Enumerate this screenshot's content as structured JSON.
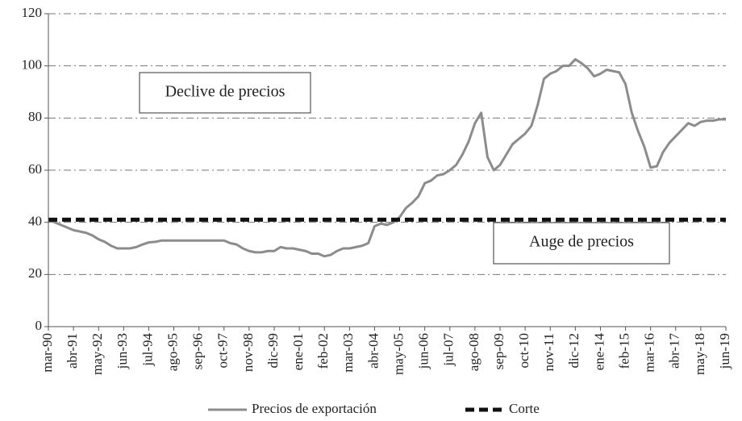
{
  "chart_data": {
    "type": "line",
    "categories": [
      "mar-90",
      null,
      null,
      null,
      "abr-91",
      null,
      null,
      null,
      "may-92",
      null,
      null,
      null,
      "jun-93",
      null,
      null,
      null,
      "jul-94",
      null,
      null,
      null,
      "ago-95",
      null,
      null,
      null,
      "sep-96",
      null,
      null,
      null,
      "oct-97",
      null,
      null,
      null,
      "nov-98",
      null,
      null,
      null,
      "dic-99",
      null,
      null,
      null,
      "ene-01",
      null,
      null,
      null,
      "feb-02",
      null,
      null,
      null,
      "mar-03",
      null,
      null,
      null,
      "abr-04",
      null,
      null,
      null,
      "may-05",
      null,
      null,
      null,
      "jun-06",
      null,
      null,
      null,
      "jul-07",
      null,
      null,
      null,
      "ago-08",
      null,
      null,
      null,
      "sep-09",
      null,
      null,
      null,
      "oct-10",
      null,
      null,
      null,
      "nov-11",
      null,
      null,
      null,
      "dic-12",
      null,
      null,
      null,
      "ene-14",
      null,
      null,
      null,
      "feb-15",
      null,
      null,
      null,
      "mar-16",
      null,
      null,
      null,
      "abr-17",
      null,
      null,
      null,
      "may-18",
      null,
      null,
      null,
      "jun-19"
    ],
    "series": [
      {
        "name": "Precios de exportación",
        "color": "#8c8c8c",
        "dashed": false,
        "values": [
          41,
          40,
          39,
          38,
          37,
          36.5,
          36,
          35,
          33.5,
          32.5,
          31,
          30,
          30,
          30,
          30.5,
          31.5,
          32.3,
          32.5,
          33,
          33,
          33,
          33,
          33,
          33,
          33,
          33,
          33,
          33,
          33,
          32,
          31.5,
          30,
          29,
          28.5,
          28.5,
          29,
          29,
          30.5,
          30,
          30,
          29.5,
          29,
          28,
          28,
          27,
          27.5,
          29,
          30,
          30,
          30.5,
          31,
          32,
          38.5,
          39.5,
          39,
          40,
          42,
          45.5,
          47.5,
          50,
          55,
          56,
          58,
          58.5,
          60,
          62,
          66,
          71,
          78,
          82,
          65,
          60,
          62,
          66,
          70,
          72,
          74,
          77,
          85,
          95,
          97,
          98,
          100,
          100,
          102.5,
          101,
          99,
          96,
          97,
          98.5,
          98,
          97.5,
          93,
          82,
          75,
          69,
          61,
          61.5,
          67,
          70.5,
          73,
          75.5,
          78,
          77,
          78.5,
          79,
          79,
          79.5,
          79.5
        ]
      },
      {
        "name": "Corte",
        "color": "#111111",
        "dashed": true,
        "values": [
          41,
          41,
          41,
          41,
          41,
          41,
          41,
          41,
          41,
          41,
          41,
          41,
          41,
          41,
          41,
          41,
          41,
          41,
          41,
          41,
          41,
          41,
          41,
          41,
          41,
          41,
          41,
          41,
          41,
          41,
          41,
          41,
          41,
          41,
          41,
          41,
          41,
          41,
          41,
          41,
          41,
          41,
          41,
          41,
          41,
          41,
          41,
          41,
          41,
          41,
          41,
          41,
          41,
          41,
          41,
          41,
          41,
          41,
          41,
          41,
          41,
          41,
          41,
          41,
          41,
          41,
          41,
          41,
          41,
          41,
          41,
          41,
          41,
          41,
          41,
          41,
          41,
          41,
          41,
          41,
          41,
          41,
          41,
          41,
          41,
          41,
          41,
          41,
          41,
          41,
          41,
          41,
          41,
          41,
          41,
          41,
          41,
          41,
          41,
          41,
          41,
          41,
          41,
          41,
          41,
          41,
          41,
          41,
          41
        ]
      }
    ],
    "ylim": [
      0,
      120
    ],
    "yticks": [
      0,
      20,
      40,
      60,
      80,
      100,
      120
    ],
    "grid": true,
    "annotations": [
      "Declive de precios",
      "Auge de precios"
    ],
    "legend": "bottom"
  }
}
